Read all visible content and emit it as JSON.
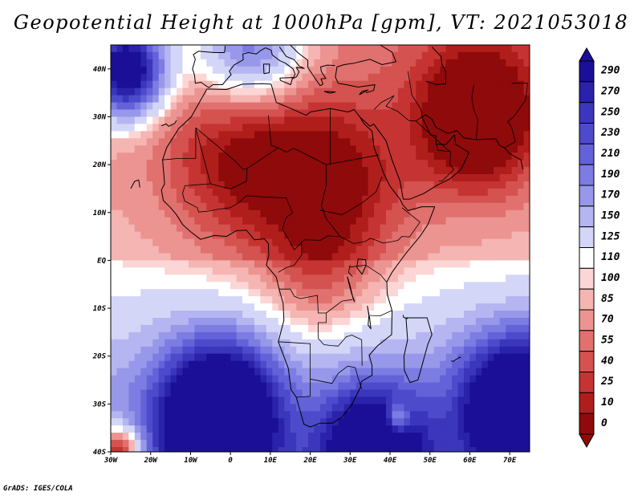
{
  "title": "Geopotential Height at 1000hPa [gpm], VT: 2021053018",
  "footer": "GrADS: IGES/COLA",
  "map": {
    "lon_range": [
      -30,
      75
    ],
    "lat_range": [
      -40,
      45
    ],
    "lon_ticks": [
      {
        "value": -30,
        "label": "30W"
      },
      {
        "value": -20,
        "label": "20W"
      },
      {
        "value": -10,
        "label": "10W"
      },
      {
        "value": 0,
        "label": "0"
      },
      {
        "value": 10,
        "label": "10E"
      },
      {
        "value": 20,
        "label": "20E"
      },
      {
        "value": 30,
        "label": "30E"
      },
      {
        "value": 40,
        "label": "40E"
      },
      {
        "value": 50,
        "label": "50E"
      },
      {
        "value": 60,
        "label": "60E"
      },
      {
        "value": 70,
        "label": "70E"
      }
    ],
    "lat_ticks": [
      {
        "value": 40,
        "label": "40N"
      },
      {
        "value": 30,
        "label": "30N"
      },
      {
        "value": 20,
        "label": "20N"
      },
      {
        "value": 10,
        "label": "10N"
      },
      {
        "value": 0,
        "label": "EQ"
      },
      {
        "value": -10,
        "label": "10S"
      },
      {
        "value": -20,
        "label": "20S"
      },
      {
        "value": -30,
        "label": "30S"
      },
      {
        "value": -40,
        "label": "40S"
      }
    ]
  },
  "colorbar": {
    "levels": [
      {
        "label": "290",
        "color": "#1a0f96"
      },
      {
        "label": "270",
        "color": "#2a22aa"
      },
      {
        "label": "250",
        "color": "#3b36bc"
      },
      {
        "label": "230",
        "color": "#4d4bcb"
      },
      {
        "label": "210",
        "color": "#6462d8"
      },
      {
        "label": "190",
        "color": "#7d7ce2"
      },
      {
        "label": "170",
        "color": "#9898ea"
      },
      {
        "label": "150",
        "color": "#b5b5f1"
      },
      {
        "label": "125",
        "color": "#d4d6f7"
      },
      {
        "label": "110",
        "color": "#ffffff"
      },
      {
        "label": "100",
        "color": "#fbd6d4"
      },
      {
        "label": "85",
        "color": "#f5b5b2"
      },
      {
        "label": "70",
        "color": "#ec9491"
      },
      {
        "label": "55",
        "color": "#e0716e"
      },
      {
        "label": "40",
        "color": "#d4524f"
      },
      {
        "label": "25",
        "color": "#c53432"
      },
      {
        "label": "10",
        "color": "#b01e1c"
      },
      {
        "label": "0",
        "color": "#8f0a0a"
      }
    ]
  },
  "field_centers": [
    {
      "lon": -3,
      "lat": -32,
      "value": 290,
      "sigma": 10
    },
    {
      "lon": -26,
      "lat": 40,
      "value": 270,
      "sigma": 7
    },
    {
      "lon": 72,
      "lat": -30,
      "value": 250,
      "sigma": 10
    },
    {
      "lon": 36,
      "lat": -39,
      "value": 210,
      "sigma": 9
    },
    {
      "lon": 5,
      "lat": 45,
      "value": 150,
      "sigma": 10
    },
    {
      "lon": 42,
      "lat": -33,
      "value": -120,
      "sigma": 2.2
    },
    {
      "lon": 62,
      "lat": 30,
      "value": -130,
      "sigma": 11
    },
    {
      "lon": 5,
      "lat": 22,
      "value": -90,
      "sigma": 14
    },
    {
      "lon": 28,
      "lat": 15,
      "value": -70,
      "sigma": 12
    },
    {
      "lon": 22,
      "lat": -5,
      "value": -50,
      "sigma": 10
    },
    {
      "lon": -28,
      "lat": -40,
      "value": -180,
      "sigma": 4
    }
  ]
}
